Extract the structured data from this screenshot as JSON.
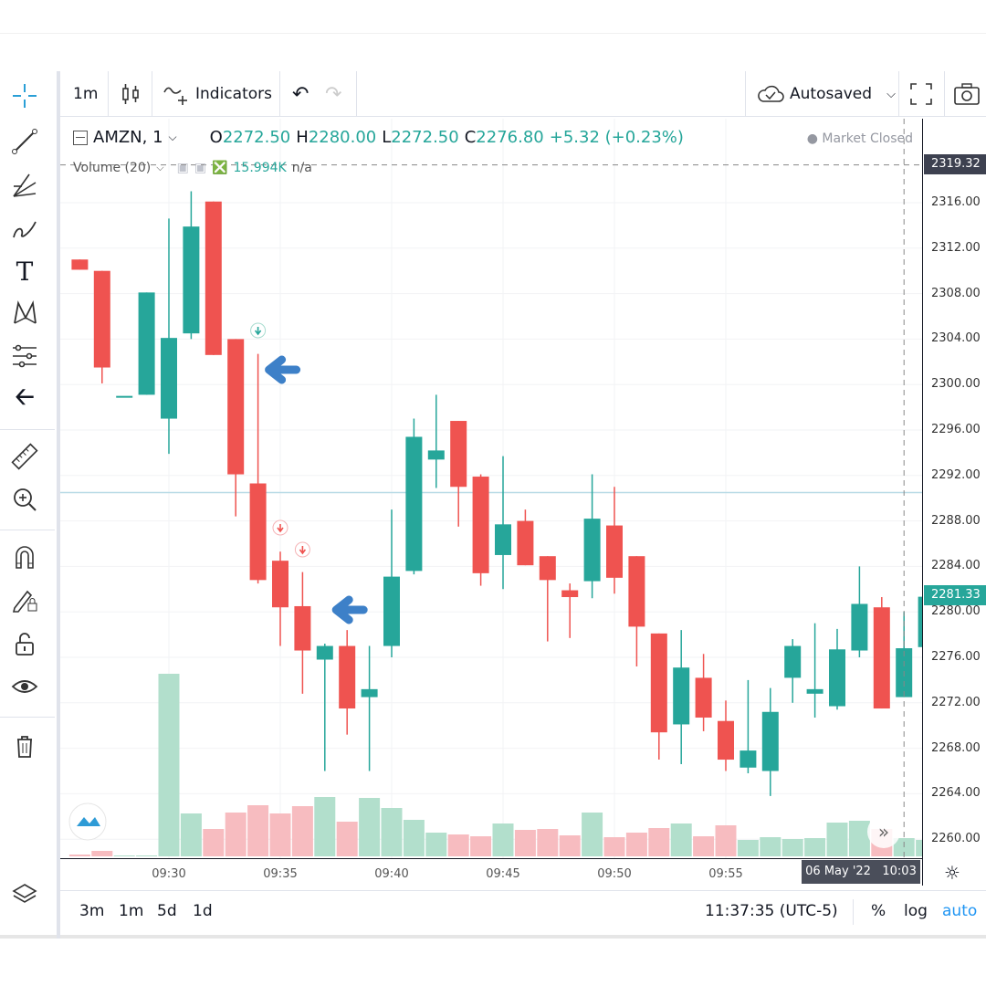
{
  "toolbar": {
    "interval": "1m",
    "indicators": "Indicators",
    "autosave": "Autosaved"
  },
  "left_tools": [
    "crosshair-icon",
    "trend-line-icon",
    "fib-icon",
    "brush-icon",
    "text-icon",
    "pattern-icon",
    "measure-icon",
    "back-arrow-icon",
    "ruler-icon",
    "zoom-in-icon",
    "magnet-icon",
    "lock-drawing-icon",
    "unlock-icon",
    "eye-icon",
    "trash-icon",
    "layers-icon"
  ],
  "legend": {
    "symbol": "AMZN, 1",
    "o_label": "O",
    "o": "2272.50",
    "h_label": "H",
    "h": "2280.00",
    "l_label": "L",
    "l": "2272.50",
    "c_label": "C",
    "c": "2276.80",
    "change": "+5.32 (+0.23%)",
    "volume_label": "Volume (20)",
    "volume_value": "15.994K",
    "volume_ma": "n/a",
    "market_status": "Market Closed"
  },
  "price_badges": {
    "crosshair": "2319.32",
    "last": "2281.33"
  },
  "time_badge": {
    "date": "06 May '22",
    "time": "10:03"
  },
  "bottom": {
    "ranges": [
      "3m",
      "1m",
      "5d",
      "1d"
    ],
    "clock": "11:37:35 (UTC-5)",
    "percent": "%",
    "log": "log",
    "auto": "auto"
  },
  "colors": {
    "up": "#26a69a",
    "down": "#ef5350",
    "up_volume": "#b2dfcc",
    "down_volume": "#f7bcc0",
    "arrow": "#3d80c8",
    "accent": "#2962ff"
  },
  "chart_data": {
    "type": "candlestick",
    "x_ticks": [
      "09:30",
      "09:35",
      "09:40",
      "09:45",
      "09:50",
      "09:55"
    ],
    "y_ticks": [
      "2316.00",
      "2312.00",
      "2308.00",
      "2304.00",
      "2300.00",
      "2296.00",
      "2292.00",
      "2288.00",
      "2284.00",
      "2280.00",
      "2276.00",
      "2272.00",
      "2268.00",
      "2264.00",
      "2260.00"
    ],
    "ylim": [
      2258.5,
      2323
    ],
    "columns": [
      "time",
      "open",
      "high",
      "low",
      "close",
      "volume_k"
    ],
    "candles": [
      [
        "09:26",
        2311.0,
        2311.0,
        2310.1,
        2310.1,
        1.6
      ],
      [
        "09:27",
        2310.0,
        2310.0,
        2300.1,
        2301.5,
        4.8
      ],
      [
        "09:28",
        2299.0,
        2299.0,
        2299.0,
        2299.0,
        0.8
      ],
      [
        "09:29",
        2299.1,
        2308.1,
        2299.1,
        2308.1,
        0.8
      ],
      [
        "09:30",
        2297.0,
        2314.6,
        2293.9,
        2304.1,
        160
      ],
      [
        "09:31",
        2304.5,
        2317.0,
        2304.0,
        2313.9,
        37.6
      ],
      [
        "09:32",
        2316.1,
        2316.1,
        2302.6,
        2302.6,
        24
      ],
      [
        "09:33",
        2304.0,
        2304.0,
        2288.4,
        2292.1,
        38.4
      ],
      [
        "09:34",
        2291.3,
        2302.7,
        2282.5,
        2282.8,
        44.8
      ],
      [
        "09:35",
        2284.5,
        2285.3,
        2277.0,
        2280.4,
        37.6
      ],
      [
        "09:36",
        2280.5,
        2283.5,
        2272.8,
        2276.6,
        44
      ],
      [
        "09:37",
        2275.8,
        2277.2,
        2266.0,
        2277.0,
        52
      ],
      [
        "09:38",
        2277.0,
        2278.4,
        2269.2,
        2271.5,
        30.4
      ],
      [
        "09:39",
        2272.5,
        2277.0,
        2266.0,
        2273.2,
        51.2
      ],
      [
        "09:40",
        2277.0,
        2289.0,
        2276.0,
        2283.1,
        42.4
      ],
      [
        "09:41",
        2283.6,
        2297.0,
        2283.3,
        2295.4,
        32
      ],
      [
        "09:42",
        2293.4,
        2299.1,
        2290.9,
        2294.2,
        20.8
      ],
      [
        "09:43",
        2296.8,
        2296.8,
        2287.5,
        2291.0,
        19.2
      ],
      [
        "09:44",
        2291.9,
        2292.1,
        2282.3,
        2283.4,
        17.6
      ],
      [
        "09:45",
        2285.0,
        2293.7,
        2282.0,
        2287.7,
        28.8
      ],
      [
        "09:46",
        2288.0,
        2289.0,
        2284.1,
        2284.1,
        23.2
      ],
      [
        "09:47",
        2284.9,
        2284.9,
        2277.4,
        2282.8,
        24
      ],
      [
        "09:48",
        2281.9,
        2282.5,
        2277.7,
        2281.3,
        18.4
      ],
      [
        "09:49",
        2282.7,
        2292.1,
        2281.2,
        2288.2,
        38.4
      ],
      [
        "09:50",
        2287.6,
        2291.0,
        2281.6,
        2283.0,
        16.8
      ],
      [
        "09:51",
        2284.9,
        2284.9,
        2275.2,
        2278.7,
        20.8
      ],
      [
        "09:52",
        2278.1,
        2278.1,
        2267.0,
        2269.4,
        24.8
      ],
      [
        "09:53",
        2270.1,
        2278.4,
        2266.6,
        2275.1,
        28.8
      ],
      [
        "09:54",
        2274.2,
        2276.3,
        2269.5,
        2270.7,
        17.6
      ],
      [
        "09:55",
        2270.4,
        2272.2,
        2266.0,
        2267.0,
        27.2
      ],
      [
        "09:56",
        2266.3,
        2274.0,
        2265.8,
        2267.8,
        14.4
      ],
      [
        "09:57",
        2266.0,
        2273.3,
        2263.8,
        2271.2,
        16.8
      ],
      [
        "09:58",
        2274.2,
        2277.6,
        2272.0,
        2277.0,
        15.2
      ],
      [
        "09:59",
        2272.8,
        2279.0,
        2270.7,
        2273.2,
        16
      ],
      [
        "10:00",
        2271.7,
        2278.5,
        2271.4,
        2276.7,
        29.6
      ],
      [
        "10:01",
        2276.6,
        2284.0,
        2276.0,
        2280.7,
        31.2
      ],
      [
        "10:02",
        2280.4,
        2281.3,
        2271.5,
        2271.5,
        24
      ],
      [
        "10:03",
        2272.5,
        2280.0,
        2272.5,
        2276.8,
        16
      ],
      [
        "10:04",
        2276.9,
        2281.33,
        2274.5,
        2281.33,
        14.4
      ]
    ],
    "horizontal_line": 2290.5,
    "crosshair": {
      "time": "10:03",
      "price": 2319.32
    },
    "signals": [
      {
        "time": "09:34",
        "type": "sell-arrow-blue"
      },
      {
        "time": "09:38",
        "type": "sell-arrow-blue"
      },
      {
        "time": "09:34",
        "type": "marker-green"
      },
      {
        "time": "09:35",
        "type": "marker-red"
      },
      {
        "time": "09:36",
        "type": "marker-red"
      }
    ]
  }
}
